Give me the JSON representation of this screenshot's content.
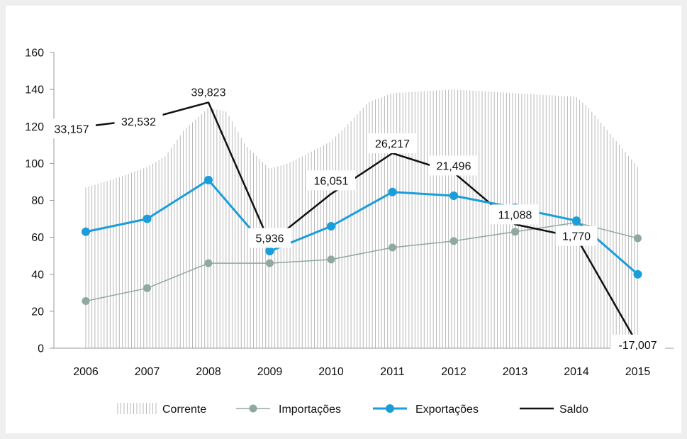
{
  "chart_data": {
    "type": "line",
    "categories": [
      "2006",
      "2007",
      "2008",
      "2009",
      "2010",
      "2011",
      "2012",
      "2013",
      "2014",
      "2015"
    ],
    "ylim": [
      0,
      160
    ],
    "yticks": [
      0,
      20,
      40,
      60,
      80,
      100,
      120,
      140,
      160
    ],
    "grid": false,
    "legend_position": "bottom",
    "series": [
      {
        "name": "Corrente",
        "style": "vertical-hatch-area",
        "color": "#b8b8b8",
        "x": [
          2006,
          2006.5,
          2007,
          2007.3,
          2007.6,
          2008,
          2008.3,
          2008.6,
          2009,
          2009.3,
          2009.6,
          2010,
          2010.3,
          2010.6,
          2011,
          2011.5,
          2012,
          2012.5,
          2013,
          2013.5,
          2014,
          2014.2,
          2014.5,
          2015
        ],
        "values": [
          87,
          92,
          98,
          104,
          118,
          130,
          128,
          110,
          97,
          100,
          105,
          112,
          122,
          133,
          138,
          139,
          140,
          139,
          138,
          137,
          136,
          130,
          118,
          98
        ]
      },
      {
        "name": "Importações",
        "color": "#8fa8a1",
        "values": [
          25.5,
          32.5,
          46,
          46,
          48,
          54.5,
          58,
          63,
          68,
          59.5
        ]
      },
      {
        "name": "Exportações",
        "color": "#1a9ddb",
        "values": [
          63,
          70,
          91,
          52.5,
          66,
          84.5,
          82.5,
          76,
          69,
          40
        ]
      },
      {
        "name": "Saldo",
        "color": "#111111",
        "values": [
          120,
          124,
          133,
          57,
          83.5,
          105.5,
          95,
          67,
          60,
          2
        ],
        "labels": [
          "33,157",
          "32,532",
          "39,823",
          "5,936",
          "16,051",
          "26,217",
          "21,496",
          "11,088",
          "1,770",
          "-17,007"
        ]
      }
    ]
  }
}
